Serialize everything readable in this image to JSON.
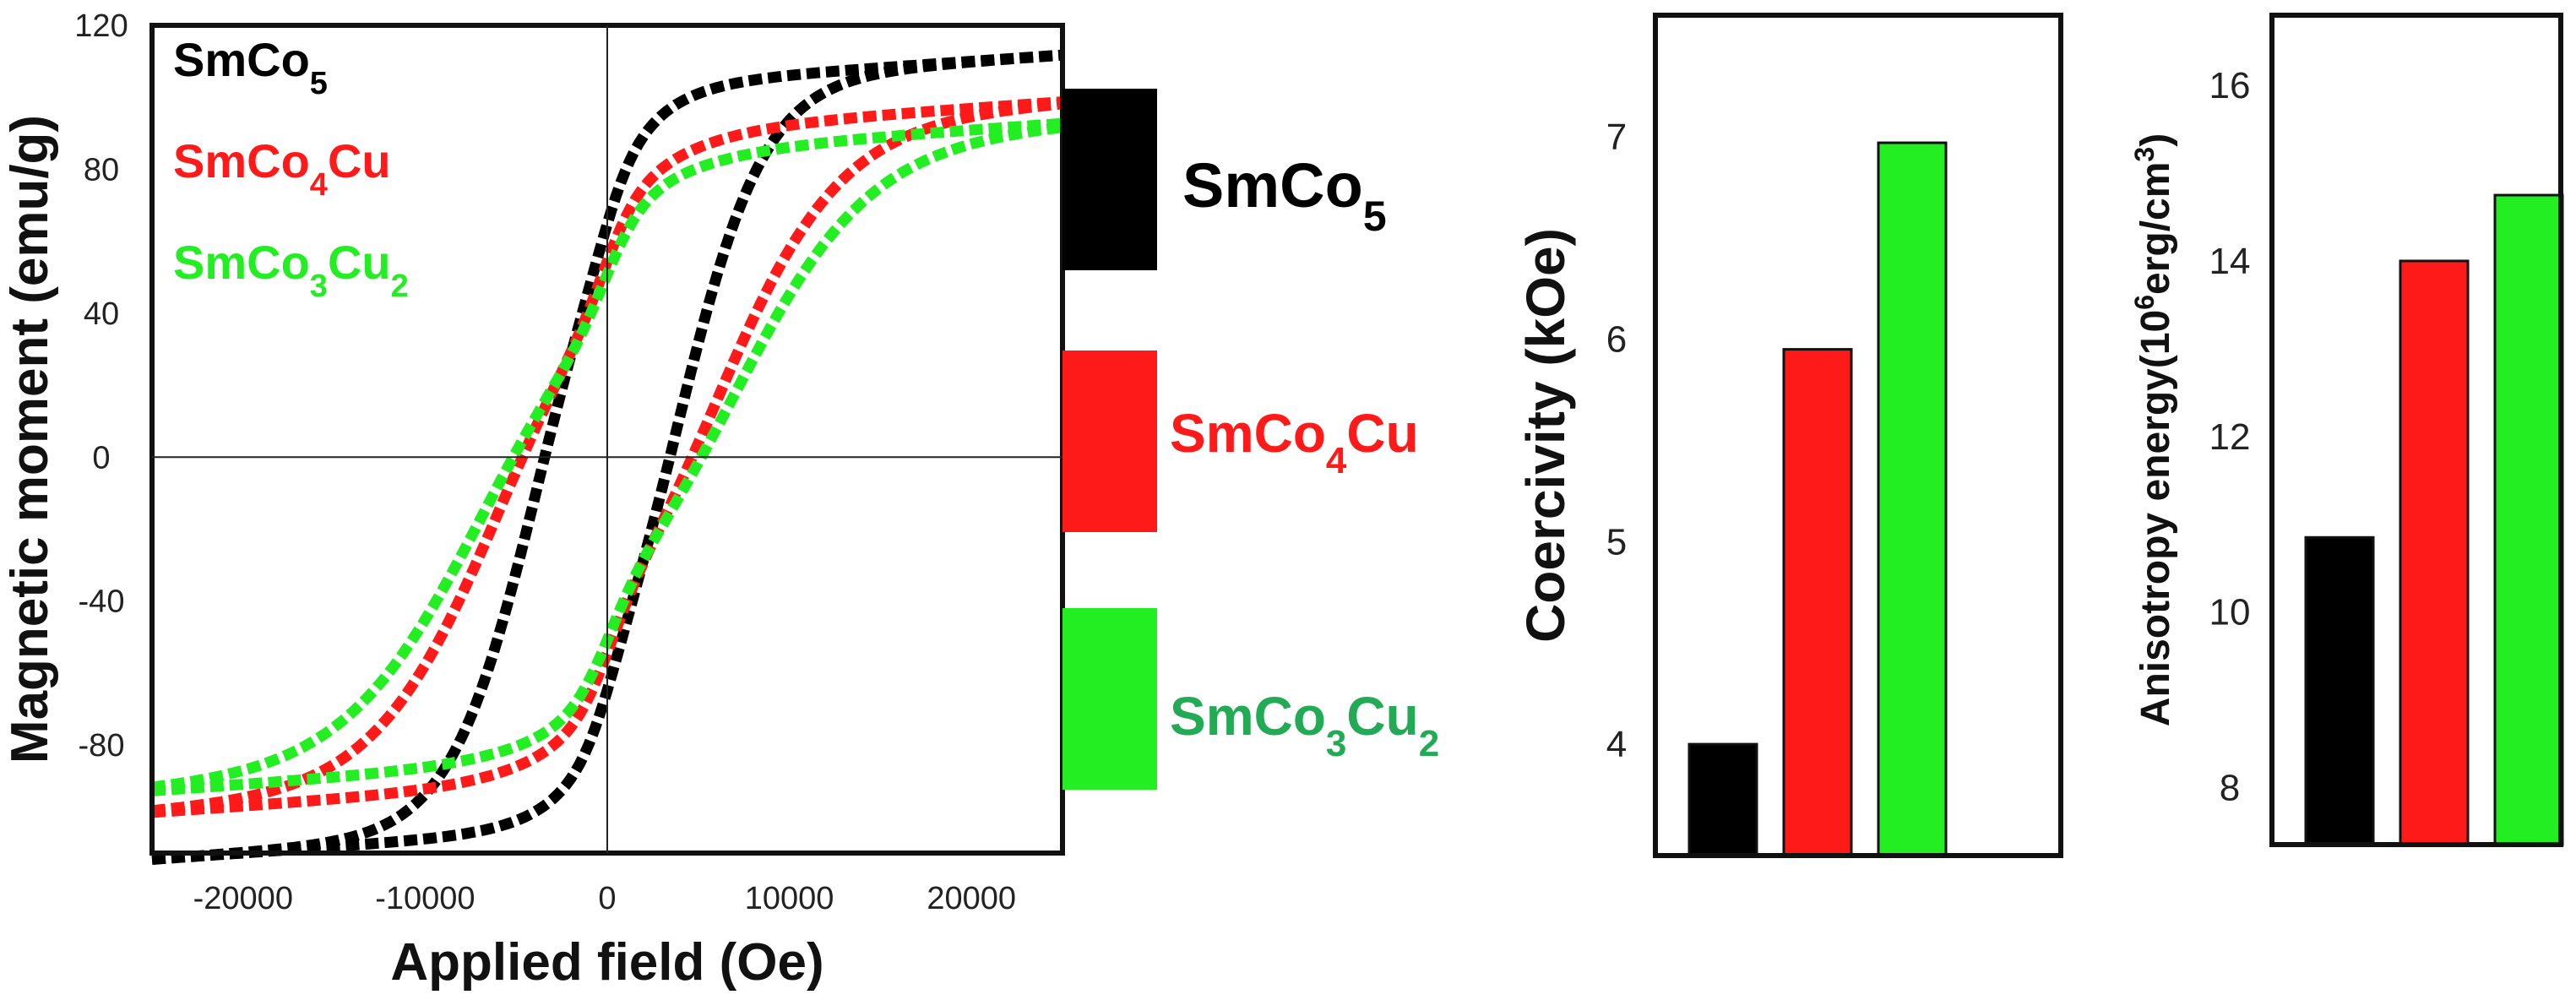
{
  "colors": {
    "SmCo5": "#000000",
    "SmCo4Cu": "#ff1a1a",
    "SmCo3Cu2": "#22ee22",
    "SmCo3Cu2_text": "#22aa55"
  },
  "chart_data": [
    {
      "type": "line",
      "title": "",
      "xlabel": "Applied field (Oe)",
      "ylabel": "Magnetic moment (emu/g)",
      "xlim": [
        -25000,
        25000
      ],
      "ylim": [
        -110,
        120
      ],
      "xticks": [
        -20000,
        -10000,
        0,
        10000,
        20000
      ],
      "xtick_labels": [
        "-20000",
        "-10000",
        "0",
        "10000",
        "20000"
      ],
      "yticks": [
        -80,
        -40,
        0,
        40,
        80,
        120
      ],
      "ytick_labels": [
        "-80",
        "-40",
        "0",
        "40",
        "80",
        "120"
      ],
      "legend_position": "top-left",
      "series": [
        {
          "key": "SmCo5",
          "name_base": "SmCo",
          "name_sub": "5",
          "name_tail": "",
          "name_sub2": "",
          "Ms": 103,
          "Hc": 4000,
          "Mr": 72,
          "hard": 0.45,
          "softWidth": 1600,
          "softFrac": 0.1
        },
        {
          "key": "SmCo4Cu",
          "name_base": "SmCo",
          "name_sub": "4",
          "name_tail": "Cu",
          "name_sub2": "",
          "Ms": 90,
          "Hc": 6000,
          "Mr": 64,
          "hard": 0.55,
          "softWidth": 1800,
          "softFrac": 0.15
        },
        {
          "key": "SmCo3Cu2",
          "name_base": "SmCo",
          "name_sub": "3",
          "name_tail": "Cu",
          "name_sub2": "2",
          "Ms": 84,
          "Hc": 7000,
          "Mr": 62,
          "hard": 0.6,
          "softWidth": 2000,
          "softFrac": 0.18
        }
      ]
    },
    {
      "type": "bar",
      "title": "",
      "xlabel": "",
      "ylabel": "Coercivity (kOe)",
      "ylim": [
        3.45,
        7.6
      ],
      "yticks": [
        4,
        5,
        6,
        7
      ],
      "ytick_labels": [
        "4",
        "5",
        "6",
        "7"
      ],
      "categories": [
        "SmCo5",
        "SmCo4Cu",
        "SmCo3Cu2"
      ],
      "values": [
        4.0,
        5.95,
        6.97
      ]
    },
    {
      "type": "bar",
      "title": "",
      "xlabel": "",
      "ylabel_base": "Anisotropy energy(10",
      "ylabel_sup1": "6",
      "ylabel_mid": "erg/cm",
      "ylabel_sup2": "3",
      "ylabel_tail": ")",
      "ylim": [
        7.35,
        16.8
      ],
      "yticks": [
        8,
        10,
        12,
        14,
        16
      ],
      "ytick_labels": [
        "8",
        "10",
        "12",
        "14",
        "16"
      ],
      "categories": [
        "SmCo5",
        "SmCo4Cu",
        "SmCo3Cu2"
      ],
      "values": [
        10.85,
        14.0,
        14.75
      ]
    }
  ],
  "side_legend": {
    "items": [
      {
        "key": "SmCo5",
        "base": "SmCo",
        "sub": "5",
        "tail": "",
        "sub2": ""
      },
      {
        "key": "SmCo4Cu",
        "base": "SmCo",
        "sub": "4",
        "tail": "Cu",
        "sub2": ""
      },
      {
        "key": "SmCo3Cu2",
        "base": "SmCo",
        "sub": "3",
        "tail": "Cu",
        "sub2": "2"
      }
    ]
  }
}
